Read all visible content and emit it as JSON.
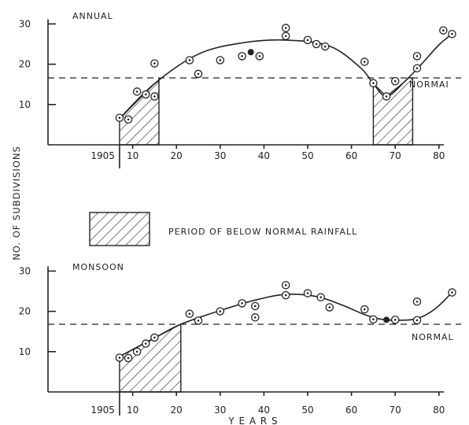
{
  "chart_data": {
    "type": "scatter",
    "ylabel": "NO. OF SUBDIVISIONS",
    "xlabel": "Y E A R S",
    "legend": {
      "label": "PERIOD OF BELOW NORMAL RAINFALL",
      "placement": "middle-left"
    },
    "colors": {
      "ink": "#222222",
      "background": "#ffffff"
    },
    "panels": [
      {
        "title": "ANNUAL",
        "x_start_label": "1905",
        "x_ticks": [
          "10",
          "20",
          "30",
          "40",
          "50",
          "60",
          "70",
          "80"
        ],
        "y_ticks": [
          "10",
          "20",
          "30"
        ],
        "xlim": [
          0,
          85
        ],
        "ylim": [
          0,
          30
        ],
        "normal": 16.6,
        "normal_label": "NORMAI",
        "below_normal_periods": [
          [
            7,
            16
          ],
          [
            65,
            74
          ]
        ],
        "observations": [
          {
            "x": 7,
            "y": 6.7,
            "style": "open"
          },
          {
            "x": 9,
            "y": 6.3,
            "style": "open"
          },
          {
            "x": 11,
            "y": 13.2,
            "style": "open"
          },
          {
            "x": 13,
            "y": 12.5,
            "style": "open"
          },
          {
            "x": 15,
            "y": 12,
            "style": "open"
          },
          {
            "x": 15,
            "y": 20.2,
            "style": "open"
          },
          {
            "x": 23,
            "y": 21,
            "style": "open"
          },
          {
            "x": 25,
            "y": 17.6,
            "style": "open"
          },
          {
            "x": 30,
            "y": 21,
            "style": "open"
          },
          {
            "x": 35,
            "y": 22,
            "style": "open"
          },
          {
            "x": 37,
            "y": 23,
            "style": "filled"
          },
          {
            "x": 39,
            "y": 22,
            "style": "open"
          },
          {
            "x": 45,
            "y": 27,
            "style": "open"
          },
          {
            "x": 45,
            "y": 29,
            "style": "open"
          },
          {
            "x": 50,
            "y": 26,
            "style": "open"
          },
          {
            "x": 52,
            "y": 25,
            "style": "open"
          },
          {
            "x": 54,
            "y": 24.4,
            "style": "open"
          },
          {
            "x": 63,
            "y": 20.6,
            "style": "open"
          },
          {
            "x": 65,
            "y": 15.3,
            "style": "open"
          },
          {
            "x": 68,
            "y": 12,
            "style": "open"
          },
          {
            "x": 70,
            "y": 15.8,
            "style": "open"
          },
          {
            "x": 75,
            "y": 19,
            "style": "open"
          },
          {
            "x": 75,
            "y": 22,
            "style": "open"
          },
          {
            "x": 81,
            "y": 28.4,
            "style": "open"
          },
          {
            "x": 83,
            "y": 27.5,
            "style": "open"
          }
        ],
        "trend": [
          [
            7,
            6.5
          ],
          [
            15,
            15.2
          ],
          [
            25,
            22.5
          ],
          [
            35,
            25.3
          ],
          [
            45,
            26
          ],
          [
            55,
            24.5
          ],
          [
            62,
            19.2
          ],
          [
            65,
            15.2
          ],
          [
            68,
            12
          ],
          [
            72,
            15.5
          ],
          [
            76,
            20
          ],
          [
            80,
            24.8
          ],
          [
            83,
            27.5
          ]
        ]
      },
      {
        "title": "MONSOON",
        "x_start_label": "1905",
        "x_ticks": [
          "10",
          "20",
          "30",
          "40",
          "50",
          "60",
          "70",
          "80"
        ],
        "y_ticks": [
          "10",
          "20",
          "30"
        ],
        "xlim": [
          0,
          85
        ],
        "ylim": [
          0,
          30
        ],
        "normal": 16.8,
        "normal_label": "NORMAL",
        "below_normal_periods": [
          [
            7,
            21
          ]
        ],
        "observations": [
          {
            "x": 7,
            "y": 8.5,
            "style": "open"
          },
          {
            "x": 9,
            "y": 8.4,
            "style": "open"
          },
          {
            "x": 11,
            "y": 10,
            "style": "open"
          },
          {
            "x": 13,
            "y": 12,
            "style": "open"
          },
          {
            "x": 15,
            "y": 13.5,
            "style": "open"
          },
          {
            "x": 23,
            "y": 19.4,
            "style": "open"
          },
          {
            "x": 25,
            "y": 17.7,
            "style": "open"
          },
          {
            "x": 30,
            "y": 20,
            "style": "open"
          },
          {
            "x": 35,
            "y": 22,
            "style": "open"
          },
          {
            "x": 38,
            "y": 18.5,
            "style": "open"
          },
          {
            "x": 38,
            "y": 21.3,
            "style": "open"
          },
          {
            "x": 45,
            "y": 24,
            "style": "open"
          },
          {
            "x": 45,
            "y": 26.5,
            "style": "open"
          },
          {
            "x": 50,
            "y": 24.5,
            "style": "open"
          },
          {
            "x": 53,
            "y": 23.5,
            "style": "open"
          },
          {
            "x": 55,
            "y": 21,
            "style": "open"
          },
          {
            "x": 63,
            "y": 20.5,
            "style": "open"
          },
          {
            "x": 65,
            "y": 18,
            "style": "open"
          },
          {
            "x": 68,
            "y": 17.9,
            "style": "filled"
          },
          {
            "x": 70,
            "y": 17.9,
            "style": "open"
          },
          {
            "x": 75,
            "y": 17.8,
            "style": "open"
          },
          {
            "x": 75,
            "y": 22.4,
            "style": "open"
          },
          {
            "x": 83,
            "y": 24.7,
            "style": "open"
          }
        ],
        "trend": [
          [
            7,
            8.8
          ],
          [
            15,
            13.4
          ],
          [
            21,
            16.8
          ],
          [
            30,
            20.2
          ],
          [
            38,
            22.8
          ],
          [
            45,
            24.2
          ],
          [
            52,
            23.7
          ],
          [
            58,
            21.5
          ],
          [
            63,
            19.2
          ],
          [
            67,
            18
          ],
          [
            71,
            17.8
          ],
          [
            75,
            18.2
          ],
          [
            79,
            20.5
          ],
          [
            83,
            24.7
          ]
        ]
      }
    ]
  }
}
